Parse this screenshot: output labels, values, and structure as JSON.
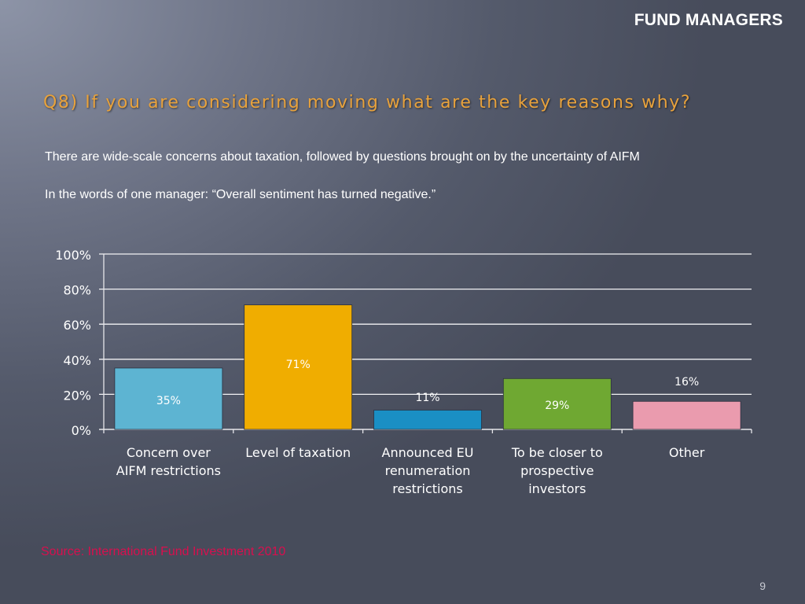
{
  "header": {
    "section": "FUND MANAGERS"
  },
  "slide": {
    "title": "Q8) If you are considering moving what are the key reasons why?",
    "paragraphs": [
      "There are wide-scale concerns about taxation, followed by questions brought on by the uncertainty of AIFM",
      "In the words of one manager: “Overall sentiment has turned negative.”"
    ],
    "source": "Source: International Fund Investment 2010",
    "page_number": "9"
  },
  "chart_data": {
    "type": "bar",
    "categories": [
      [
        "Concern over",
        "AIFM restrictions"
      ],
      [
        "Level of taxation"
      ],
      [
        "Announced EU",
        "renumeration",
        "restrictions"
      ],
      [
        "To be closer to",
        "prospective",
        "investors"
      ],
      [
        "Other"
      ]
    ],
    "values": [
      35,
      71,
      11,
      29,
      16
    ],
    "data_labels": [
      "35%",
      "71%",
      "11%",
      "29%",
      "16%"
    ],
    "bar_colors": [
      "#5db4d2",
      "#f0ad00",
      "#1a8fc4",
      "#6fa832",
      "#ea9bae"
    ],
    "ylim": [
      0,
      100
    ],
    "yticks": [
      0,
      20,
      40,
      60,
      80,
      100
    ],
    "ytick_labels": [
      "0%",
      "20%",
      "40%",
      "60%",
      "80%",
      "100%"
    ],
    "grid": true,
    "title": "",
    "xlabel": "",
    "ylabel": ""
  }
}
